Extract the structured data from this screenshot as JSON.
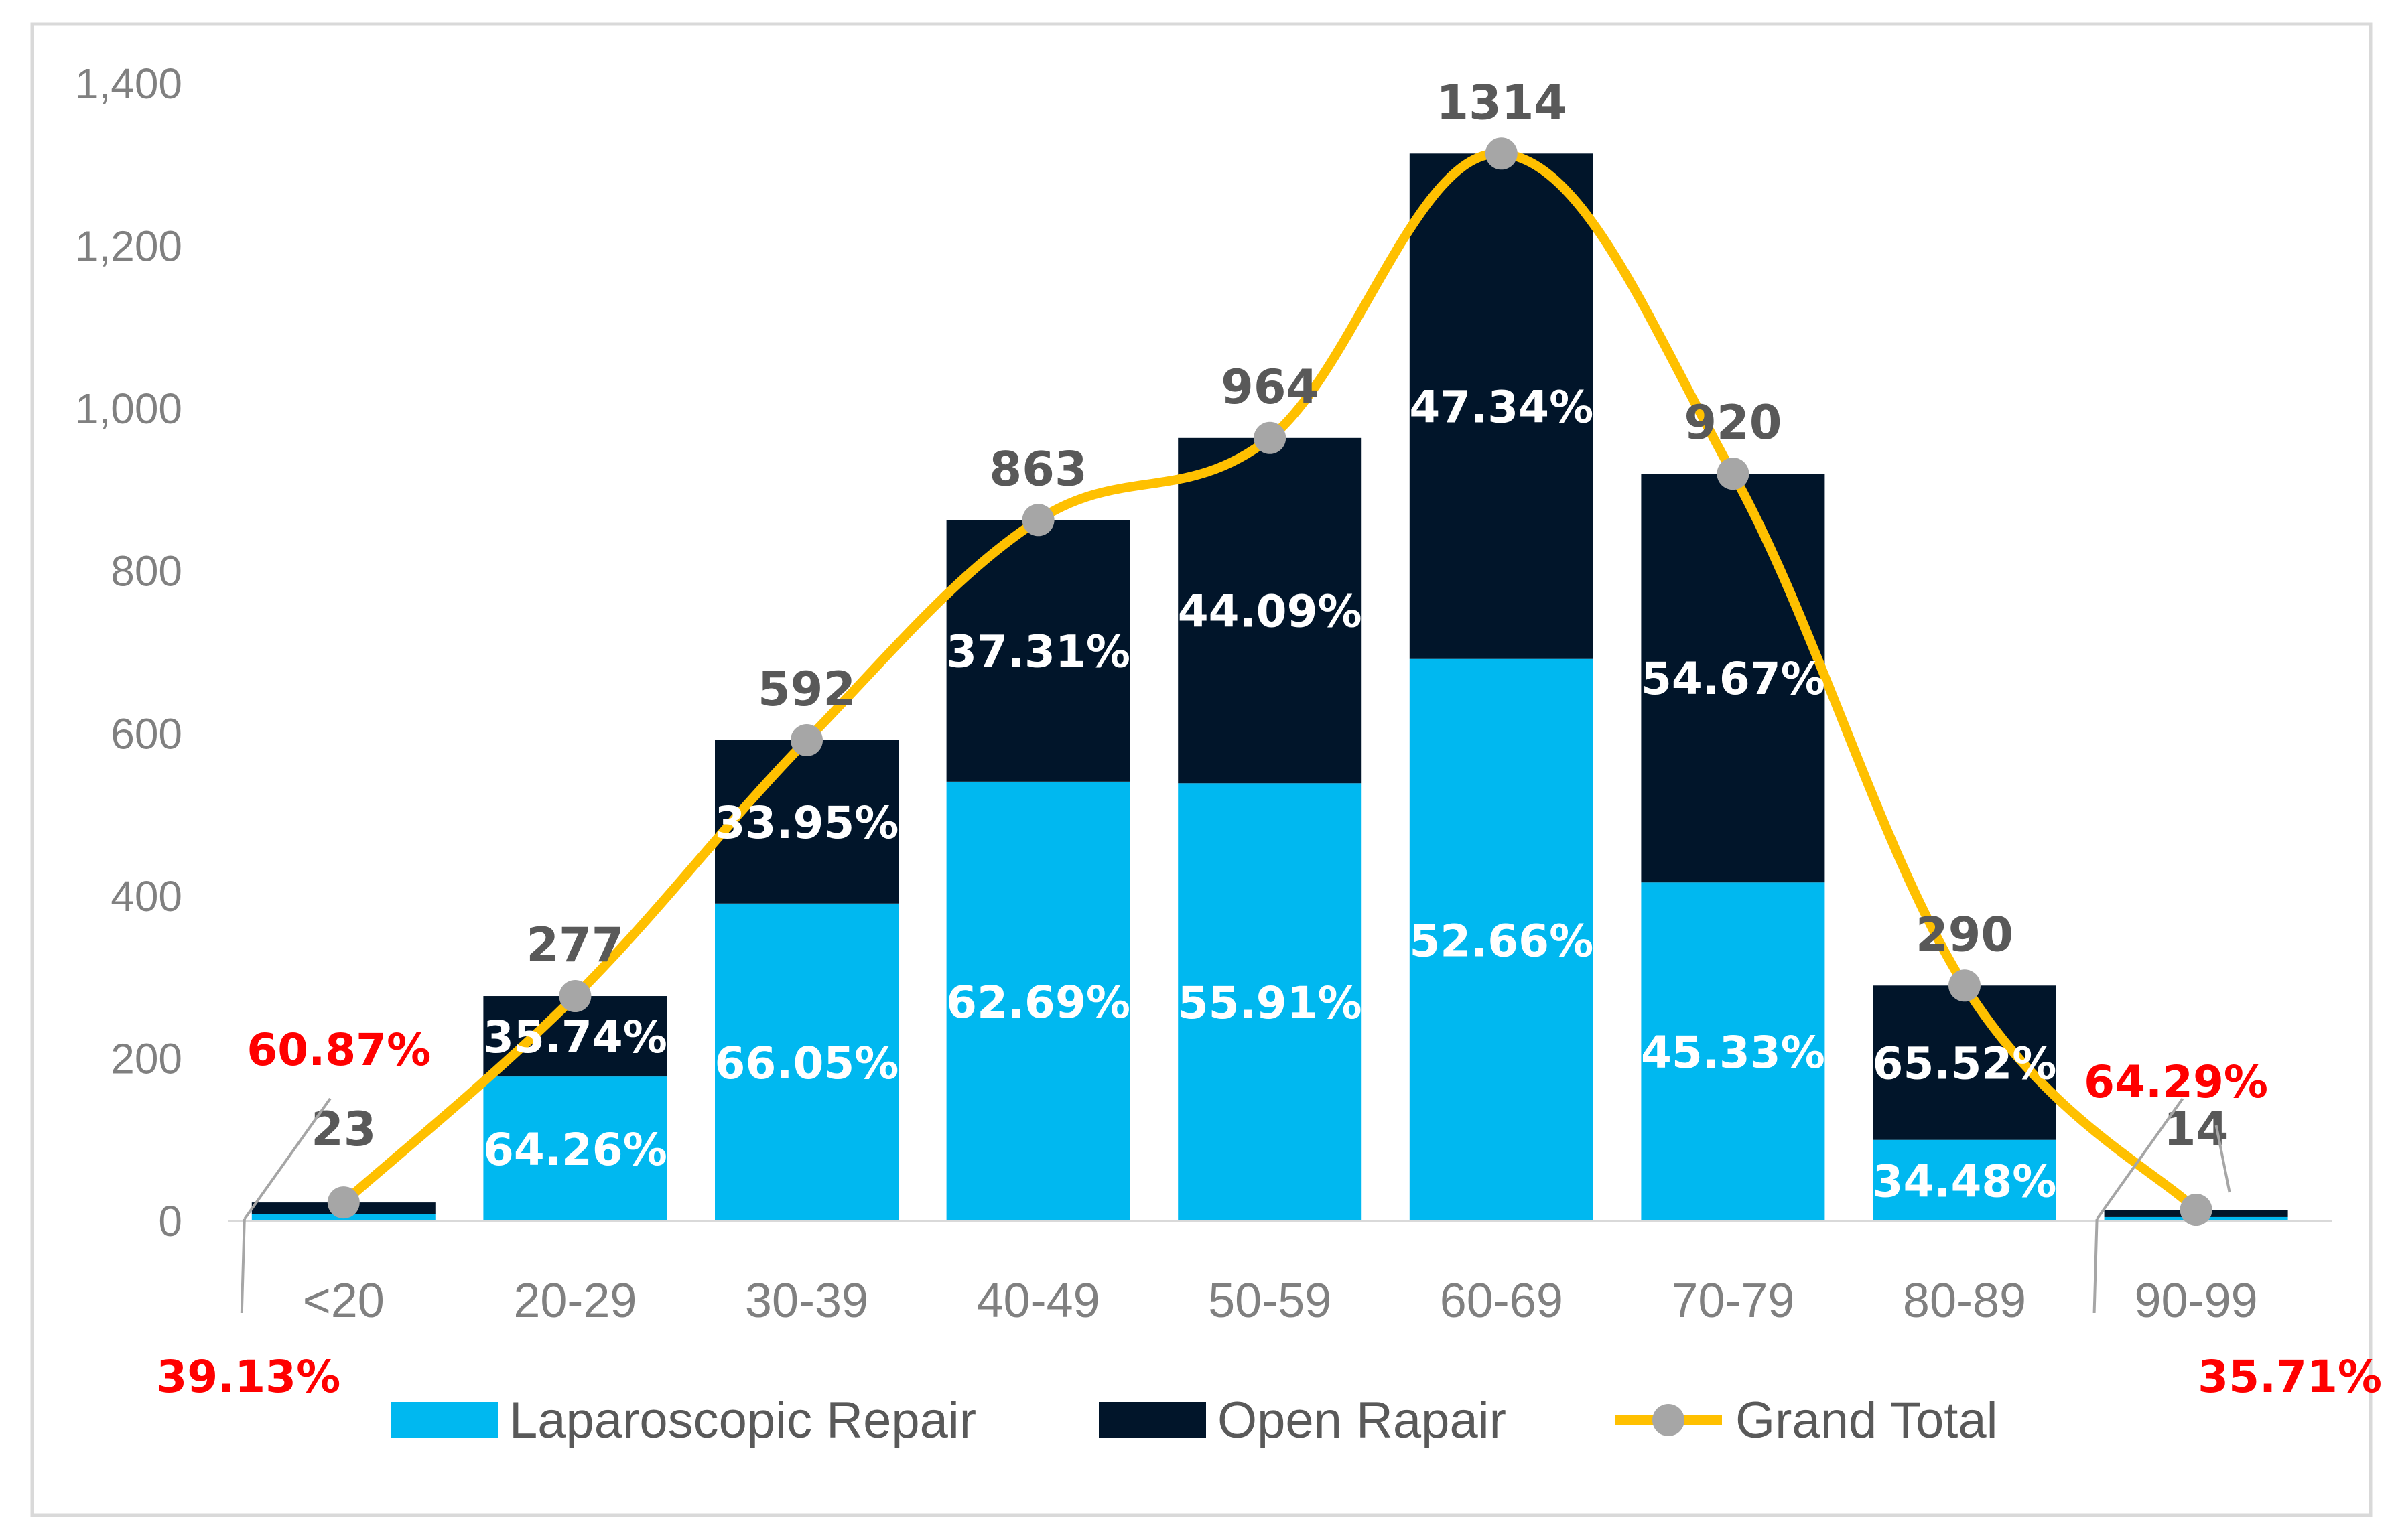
{
  "chart_data": {
    "type": "bar",
    "stacked": true,
    "title": "",
    "xlabel": "",
    "ylabel": "",
    "ylim": [
      0,
      1400
    ],
    "ytick_step": 200,
    "ytick_labels": [
      "0",
      "200",
      "400",
      "600",
      "800",
      "1,000",
      "1,200",
      "1,400"
    ],
    "grid": false,
    "categories": [
      "<20",
      "20-29",
      "30-39",
      "40-49",
      "50-59",
      "60-69",
      "70-79",
      "80-89",
      "90-99"
    ],
    "series": [
      {
        "name": "Laparoscopic Repair",
        "type": "bar",
        "color": "#00b8f0",
        "values": [
          9,
          178,
          391,
          541,
          539,
          692,
          417,
          100,
          5
        ],
        "pct_labels": [
          "39.13%",
          "64.26%",
          "66.05%",
          "62.69%",
          "55.91%",
          "52.66%",
          "45.33%",
          "34.48%",
          "35.71%"
        ]
      },
      {
        "name": "Open Rapair",
        "type": "bar",
        "color": "#01152a",
        "values": [
          14,
          99,
          201,
          322,
          425,
          622,
          503,
          190,
          9
        ],
        "pct_labels": [
          "60.87%",
          "35.74%",
          "33.95%",
          "37.31%",
          "44.09%",
          "47.34%",
          "54.67%",
          "65.52%",
          "64.29%"
        ]
      },
      {
        "name": "Grand Total",
        "type": "line",
        "color": "#ffc000",
        "marker_color": "#a6a6a6",
        "values": [
          23,
          277,
          592,
          863,
          964,
          1314,
          920,
          290,
          14
        ],
        "labels": [
          "23",
          "277",
          "592",
          "863",
          "964",
          "1314",
          "920",
          "290",
          "14"
        ]
      }
    ],
    "legend": "bottom"
  }
}
